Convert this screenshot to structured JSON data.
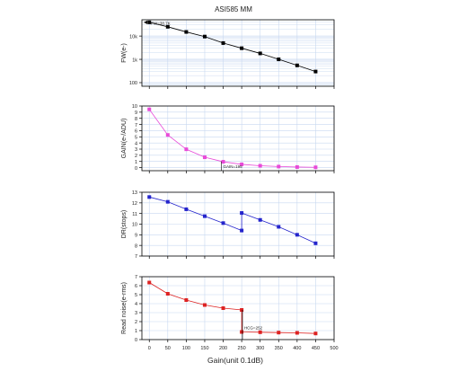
{
  "figure": {
    "title": "ASI585 MM"
  },
  "chart_data": [
    {
      "type": "line",
      "ylabel": "FW(e-)",
      "scale": "log",
      "ylim": [
        70,
        50000
      ],
      "yticks": [
        100,
        1000,
        10000
      ],
      "ytick_labels": [
        "100",
        "1k",
        "10k"
      ],
      "xlim": [
        -20,
        500
      ],
      "x": [
        0,
        50,
        100,
        150,
        200,
        250,
        300,
        350,
        400,
        450
      ],
      "series": [
        {
          "color": "#000000",
          "values": [
            38760,
            25000,
            15000,
            9500,
            5000,
            3000,
            1800,
            1000,
            550,
            300
          ]
        }
      ],
      "annotations": [
        {
          "text": "FW=38.7K",
          "x": 0,
          "y": 38760
        }
      ],
      "grid": true
    },
    {
      "type": "line",
      "ylabel": "GAIN(e-/ADU)",
      "ylim": [
        -0.5,
        10
      ],
      "yticks": [
        0,
        1,
        2,
        3,
        4,
        5,
        6,
        7,
        8,
        9,
        10
      ],
      "xlim": [
        -20,
        500
      ],
      "x": [
        0,
        50,
        100,
        150,
        200,
        250,
        300,
        350,
        400,
        450
      ],
      "series": [
        {
          "color": "#e84ad8",
          "values": [
            9.46,
            5.3,
            2.98,
            1.68,
            0.95,
            0.53,
            0.3,
            0.17,
            0.09,
            0.05
          ]
        }
      ],
      "annotations": [
        {
          "text": "GAIN=195",
          "x": 195,
          "y": 0.3
        }
      ],
      "grid": true
    },
    {
      "type": "line",
      "ylabel": "DR(stops)",
      "ylim": [
        7,
        13
      ],
      "yticks": [
        7,
        8,
        9,
        10,
        11,
        12,
        13
      ],
      "xlim": [
        -20,
        500
      ],
      "x": [
        0,
        50,
        100,
        150,
        200,
        250,
        250,
        300,
        350,
        400,
        450
      ],
      "series": [
        {
          "color": "#2424cc",
          "values": [
            12.55,
            12.1,
            11.4,
            10.75,
            10.1,
            9.4,
            11.05,
            10.4,
            9.75,
            9.0,
            8.2
          ]
        }
      ],
      "grid": true
    },
    {
      "type": "line",
      "ylabel": "Read noise(e-rms)",
      "ylim": [
        0,
        7
      ],
      "yticks": [
        0,
        1,
        2,
        3,
        4,
        5,
        6,
        7
      ],
      "xlim": [
        -20,
        500
      ],
      "x": [
        0,
        50,
        100,
        150,
        200,
        250,
        250,
        300,
        350,
        400,
        450
      ],
      "series": [
        {
          "color": "#dd2222",
          "values": [
            6.35,
            5.1,
            4.4,
            3.85,
            3.5,
            3.3,
            0.85,
            0.82,
            0.78,
            0.75,
            0.68
          ]
        }
      ],
      "annotations": [
        {
          "text": "HCG=252",
          "x": 252,
          "y": 1.4
        }
      ],
      "grid": true
    }
  ],
  "xaxis": {
    "label": "Gain(unit 0.1dB)",
    "ticks": [
      0,
      50,
      100,
      150,
      200,
      250,
      300,
      350,
      400,
      450,
      500
    ]
  },
  "colors": {
    "grid": "#c8d8f0",
    "frame": "#000000"
  }
}
